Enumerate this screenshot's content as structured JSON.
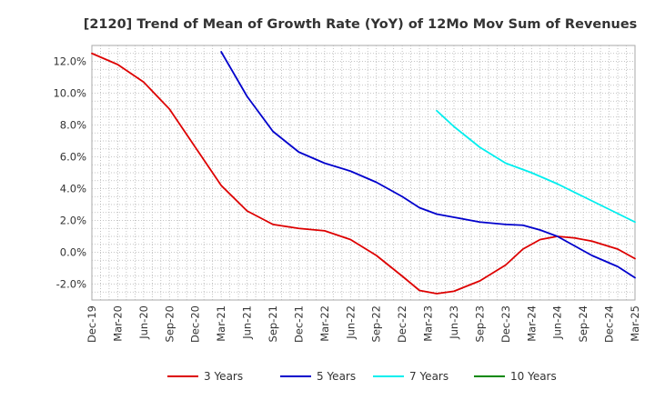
{
  "chart_data": {
    "type": "line",
    "title": "[2120]  Trend of Mean of Growth Rate (YoY) of 12Mo Mov Sum of Revenues",
    "xlabel": "",
    "ylabel": "",
    "x_tick_labels": [
      "Dec-19",
      "Mar-20",
      "Jun-20",
      "Sep-20",
      "Dec-20",
      "Mar-21",
      "Jun-21",
      "Sep-21",
      "Dec-21",
      "Mar-22",
      "Jun-22",
      "Sep-22",
      "Dec-22",
      "Mar-23",
      "Jun-23",
      "Sep-23",
      "Dec-23",
      "Mar-24",
      "Jun-24",
      "Sep-24",
      "Dec-24",
      "Mar-25"
    ],
    "y_ticks": [
      -2.0,
      0.0,
      2.0,
      4.0,
      6.0,
      8.0,
      10.0,
      12.0
    ],
    "y_tick_labels": [
      "-2.0%",
      "0.0%",
      "2.0%",
      "4.0%",
      "6.0%",
      "8.0%",
      "10.0%",
      "12.0%"
    ],
    "ylim": [
      -3.0,
      13.0
    ],
    "x_range_months": [
      0,
      63
    ],
    "grid": true,
    "legend_position": "bottom",
    "series": [
      {
        "name": "3 Years",
        "color": "#dd0000",
        "points": [
          [
            0,
            12.5
          ],
          [
            3,
            11.8
          ],
          [
            6,
            10.7
          ],
          [
            9,
            9.0
          ],
          [
            12,
            6.6
          ],
          [
            15,
            4.2
          ],
          [
            18,
            2.6
          ],
          [
            21,
            1.75
          ],
          [
            24,
            1.5
          ],
          [
            27,
            1.35
          ],
          [
            30,
            0.8
          ],
          [
            33,
            -0.2
          ],
          [
            36,
            -1.5
          ],
          [
            38,
            -2.4
          ],
          [
            40,
            -2.6
          ],
          [
            42,
            -2.45
          ],
          [
            45,
            -1.8
          ],
          [
            48,
            -0.8
          ],
          [
            50,
            0.2
          ],
          [
            52,
            0.8
          ],
          [
            54,
            1.0
          ],
          [
            56,
            0.9
          ],
          [
            58,
            0.7
          ],
          [
            61,
            0.2
          ],
          [
            63,
            -0.4
          ]
        ]
      },
      {
        "name": "5 Years",
        "color": "#0000cc",
        "points": [
          [
            15,
            12.6
          ],
          [
            18,
            9.8
          ],
          [
            21,
            7.6
          ],
          [
            24,
            6.3
          ],
          [
            27,
            5.6
          ],
          [
            30,
            5.1
          ],
          [
            33,
            4.4
          ],
          [
            36,
            3.5
          ],
          [
            38,
            2.8
          ],
          [
            40,
            2.4
          ],
          [
            42,
            2.2
          ],
          [
            45,
            1.9
          ],
          [
            48,
            1.75
          ],
          [
            50,
            1.7
          ],
          [
            52,
            1.4
          ],
          [
            54,
            1.0
          ],
          [
            56,
            0.4
          ],
          [
            58,
            -0.2
          ],
          [
            61,
            -0.9
          ],
          [
            63,
            -1.6
          ]
        ]
      },
      {
        "name": "7 Years",
        "color": "#00eeee",
        "points": [
          [
            40,
            8.9
          ],
          [
            42,
            7.9
          ],
          [
            45,
            6.6
          ],
          [
            48,
            5.6
          ],
          [
            51,
            5.0
          ],
          [
            54,
            4.3
          ],
          [
            57,
            3.5
          ],
          [
            60,
            2.7
          ],
          [
            63,
            1.9
          ]
        ]
      },
      {
        "name": "10 Years",
        "color": "#008800",
        "points": []
      }
    ]
  }
}
